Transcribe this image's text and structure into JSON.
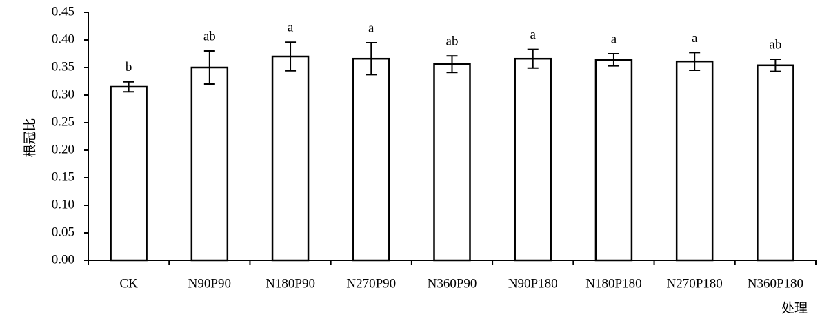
{
  "chart_data": {
    "type": "bar",
    "ylabel": "根冠比",
    "xlabel": "处理",
    "categories": [
      "CK",
      "N90P90",
      "N180P90",
      "N270P90",
      "N360P90",
      "N90P180",
      "N180P180",
      "N270P180",
      "N360P180"
    ],
    "values": [
      0.315,
      0.35,
      0.37,
      0.366,
      0.356,
      0.366,
      0.364,
      0.361,
      0.354
    ],
    "errors": [
      0.009,
      0.03,
      0.026,
      0.029,
      0.015,
      0.017,
      0.011,
      0.016,
      0.011
    ],
    "annotations": [
      "b",
      "ab",
      "a",
      "a",
      "ab",
      "a",
      "a",
      "a",
      "ab"
    ],
    "color": "#ffffff",
    "ylim": [
      0,
      0.45
    ],
    "yticks": [
      {
        "value": 0,
        "label": "0.00"
      },
      0.05,
      {
        "value": 0.1,
        "label": "0.10"
      },
      0.15,
      {
        "value": 0.2,
        "label": "0.20"
      },
      0.25,
      {
        "value": 0.3,
        "label": "0.30"
      },
      0.35,
      {
        "value": 0.4,
        "label": "0.40"
      },
      0.45
    ],
    "grid": false
  }
}
